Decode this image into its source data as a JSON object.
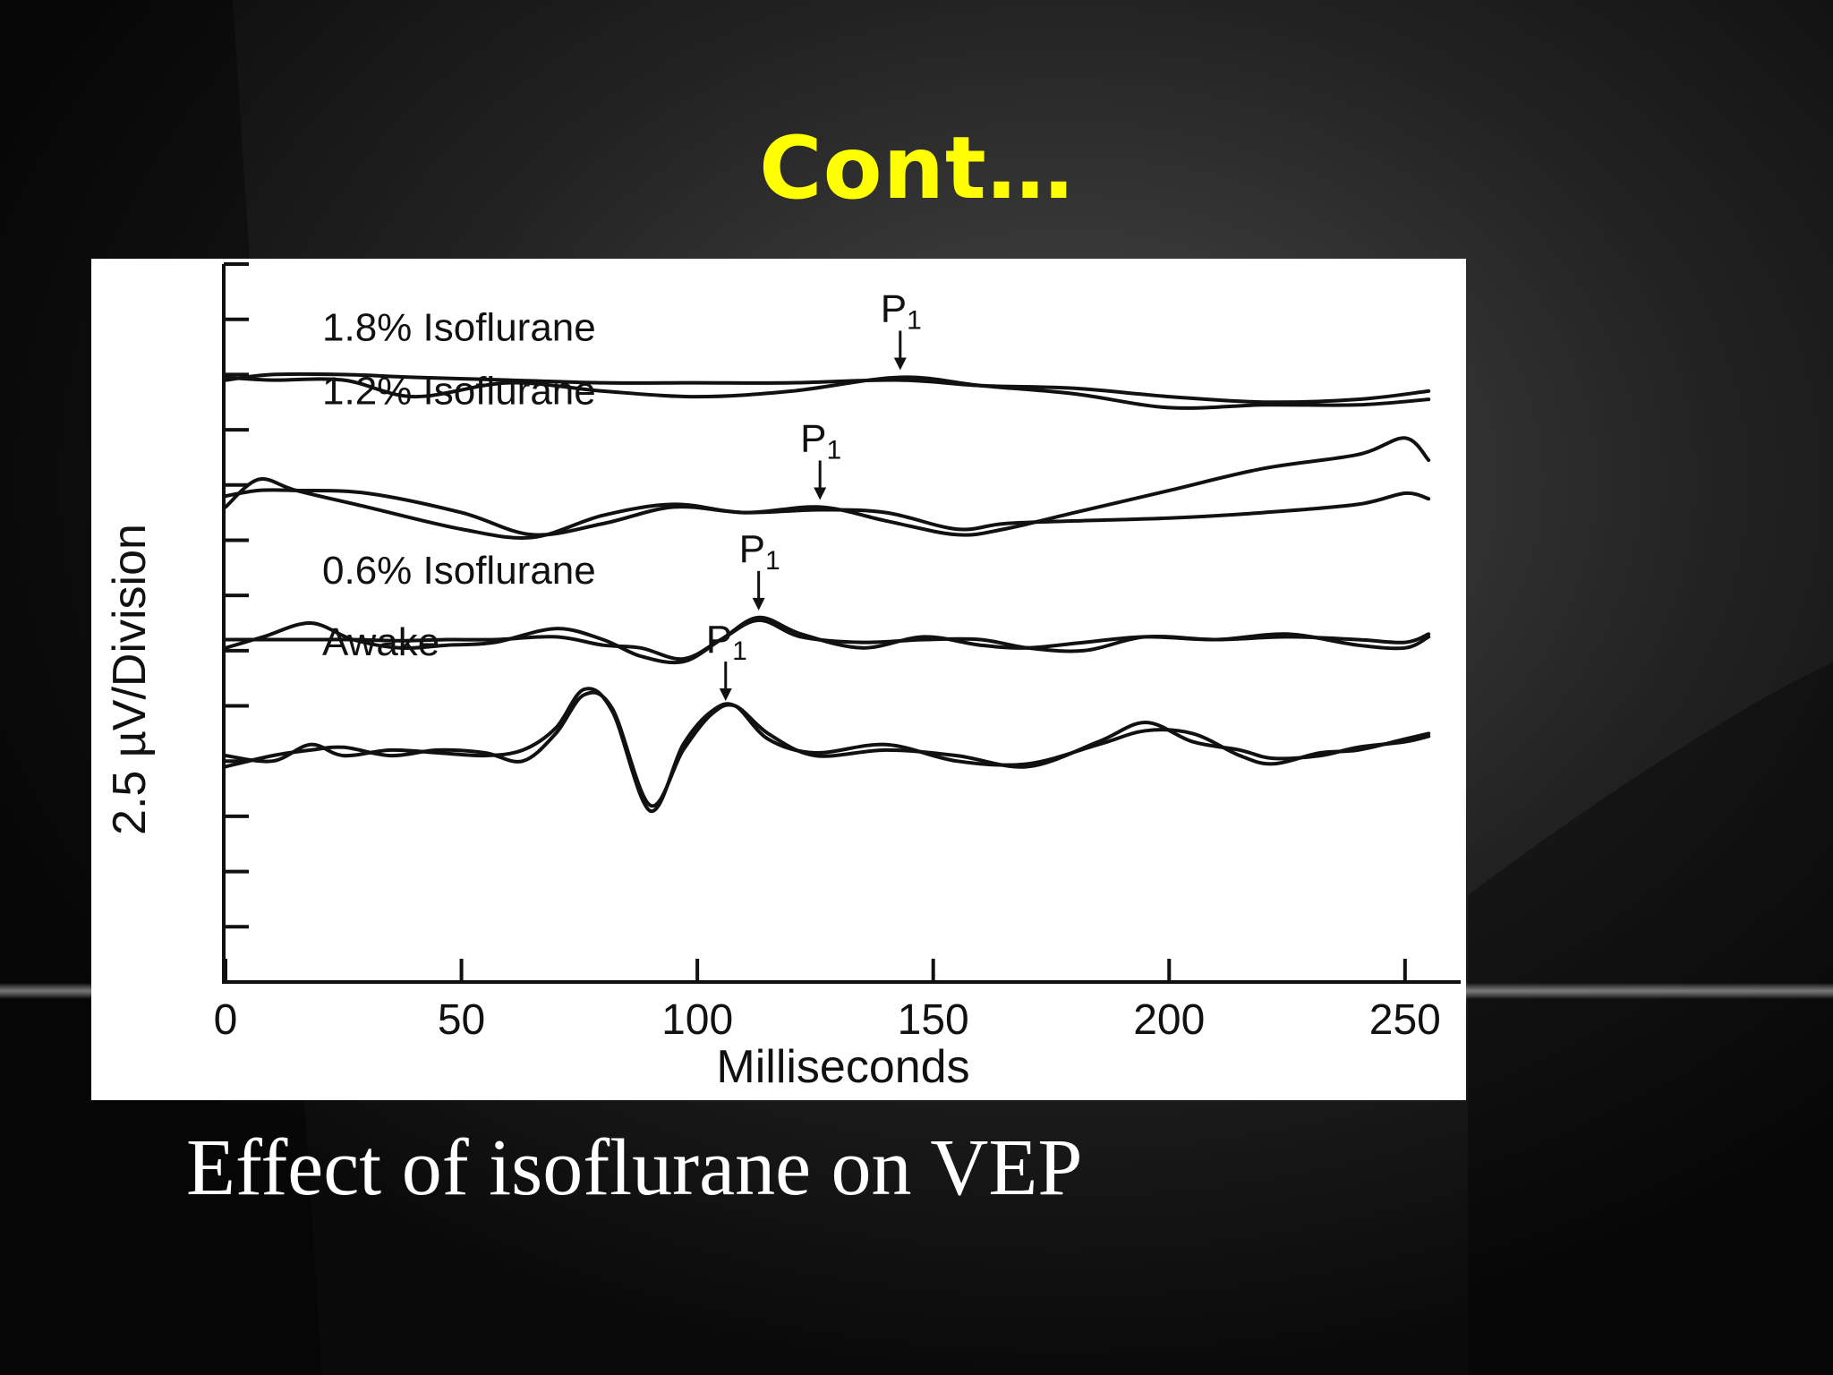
{
  "slide": {
    "title": "Cont…",
    "caption": "Effect of isoflurane on VEP"
  },
  "colors": {
    "title": "#ffff00",
    "caption": "#ffffff",
    "background": "#0d0d0d",
    "figure_bg": "#ffffff",
    "trace": "#111111"
  },
  "chart_data": {
    "type": "line",
    "title": "",
    "xlabel": "Milliseconds",
    "ylabel": "2.5 µV/Division",
    "xlim": [
      0,
      258
    ],
    "x_ticks": [
      0,
      50,
      100,
      150,
      200,
      250
    ],
    "y_unit": "divisions",
    "ylim": [
      0,
      13
    ],
    "grid": false,
    "peak_label": "P1",
    "panels": [
      {
        "label": "1.8% Isoflurane",
        "p1_latency": 143,
        "trials": [
          {
            "x": [
              0,
              10,
              25,
              40,
              60,
              80,
              100,
              120,
              143,
              160,
              180,
              200,
              220,
              240,
              255
            ],
            "y": [
              10.9,
              11.0,
              11.0,
              10.95,
              10.9,
              10.85,
              10.85,
              10.85,
              10.9,
              10.8,
              10.75,
              10.6,
              10.5,
              10.55,
              10.7
            ]
          },
          {
            "x": [
              0,
              10,
              25,
              40,
              60,
              80,
              100,
              120,
              143,
              160,
              180,
              200,
              220,
              240,
              255
            ],
            "y": [
              10.95,
              10.9,
              10.9,
              10.6,
              10.85,
              10.7,
              10.6,
              10.7,
              10.95,
              10.8,
              10.65,
              10.4,
              10.45,
              10.45,
              10.55
            ]
          }
        ]
      },
      {
        "label": "1.2% Isoflurane",
        "p1_latency": 126,
        "trials": [
          {
            "x": [
              0,
              7,
              15,
              30,
              50,
              65,
              80,
              95,
              110,
              126,
              140,
              155,
              165,
              180,
              200,
              220,
              240,
              250,
              255
            ],
            "y": [
              8.8,
              8.9,
              8.9,
              8.85,
              8.5,
              8.1,
              8.3,
              8.6,
              8.5,
              8.55,
              8.5,
              8.2,
              8.3,
              8.35,
              8.4,
              8.5,
              8.65,
              8.85,
              8.75
            ]
          },
          {
            "x": [
              0,
              7,
              15,
              30,
              50,
              65,
              80,
              95,
              110,
              126,
              140,
              155,
              165,
              180,
              200,
              220,
              240,
              250,
              255
            ],
            "y": [
              8.6,
              9.1,
              8.9,
              8.6,
              8.2,
              8.05,
              8.45,
              8.65,
              8.5,
              8.6,
              8.35,
              8.1,
              8.2,
              8.5,
              8.9,
              9.3,
              9.55,
              9.85,
              9.45
            ]
          }
        ]
      },
      {
        "label": "0.6% Isoflurane",
        "p1_latency": 113,
        "trials": [
          {
            "x": [
              0,
              8,
              18,
              27,
              37,
              47,
              57,
              70,
              80,
              88,
              97,
              105,
              113,
              122,
              135,
              148,
              160,
              170,
              182,
              195,
              210,
              225,
              240,
              250,
              255
            ],
            "y": [
              6.05,
              6.25,
              6.5,
              6.2,
              6.05,
              6.1,
              6.15,
              6.4,
              6.2,
              5.9,
              5.8,
              6.2,
              6.6,
              6.3,
              6.05,
              6.25,
              6.1,
              6.05,
              6.15,
              6.25,
              6.2,
              6.3,
              6.1,
              6.05,
              6.25
            ]
          },
          {
            "x": [
              0,
              8,
              18,
              27,
              37,
              47,
              57,
              70,
              80,
              88,
              97,
              105,
              113,
              122,
              135,
              148,
              160,
              170,
              182,
              195,
              210,
              225,
              240,
              250,
              255
            ],
            "y": [
              6.2,
              6.2,
              6.2,
              6.2,
              6.18,
              6.2,
              6.2,
              6.25,
              6.1,
              6.05,
              5.85,
              6.2,
              6.55,
              6.25,
              6.15,
              6.2,
              6.2,
              6.05,
              6.0,
              6.25,
              6.2,
              6.25,
              6.2,
              6.15,
              6.3
            ]
          }
        ]
      },
      {
        "label": "Awake",
        "p1_latency": 106,
        "trials": [
          {
            "x": [
              0,
              10,
              18,
              25,
              35,
              45,
              55,
              63,
              70,
              76,
              82,
              90,
              97,
              103,
              108,
              115,
              125,
              140,
              155,
              170,
              185,
              195,
              205,
              215,
              222,
              232,
              240,
              250,
              255
            ],
            "y": [
              4.1,
              4.0,
              4.3,
              4.1,
              4.2,
              4.15,
              4.1,
              4.2,
              4.6,
              5.3,
              4.9,
              3.1,
              4.3,
              4.9,
              5.0,
              4.4,
              4.15,
              4.3,
              4.0,
              3.95,
              4.3,
              4.55,
              4.5,
              4.1,
              3.95,
              4.15,
              4.2,
              4.4,
              4.5
            ]
          },
          {
            "x": [
              0,
              10,
              18,
              25,
              35,
              45,
              55,
              63,
              70,
              76,
              82,
              90,
              97,
              103,
              108,
              115,
              125,
              140,
              155,
              170,
              185,
              195,
              205,
              215,
              222,
              232,
              240,
              250,
              255
            ],
            "y": [
              3.9,
              4.1,
              4.2,
              4.25,
              4.1,
              4.2,
              4.15,
              4.0,
              4.5,
              5.2,
              4.95,
              3.2,
              4.2,
              4.85,
              5.0,
              4.5,
              4.1,
              4.2,
              4.1,
              3.9,
              4.35,
              4.7,
              4.35,
              4.2,
              4.05,
              4.1,
              4.25,
              4.35,
              4.45
            ]
          }
        ]
      }
    ]
  }
}
